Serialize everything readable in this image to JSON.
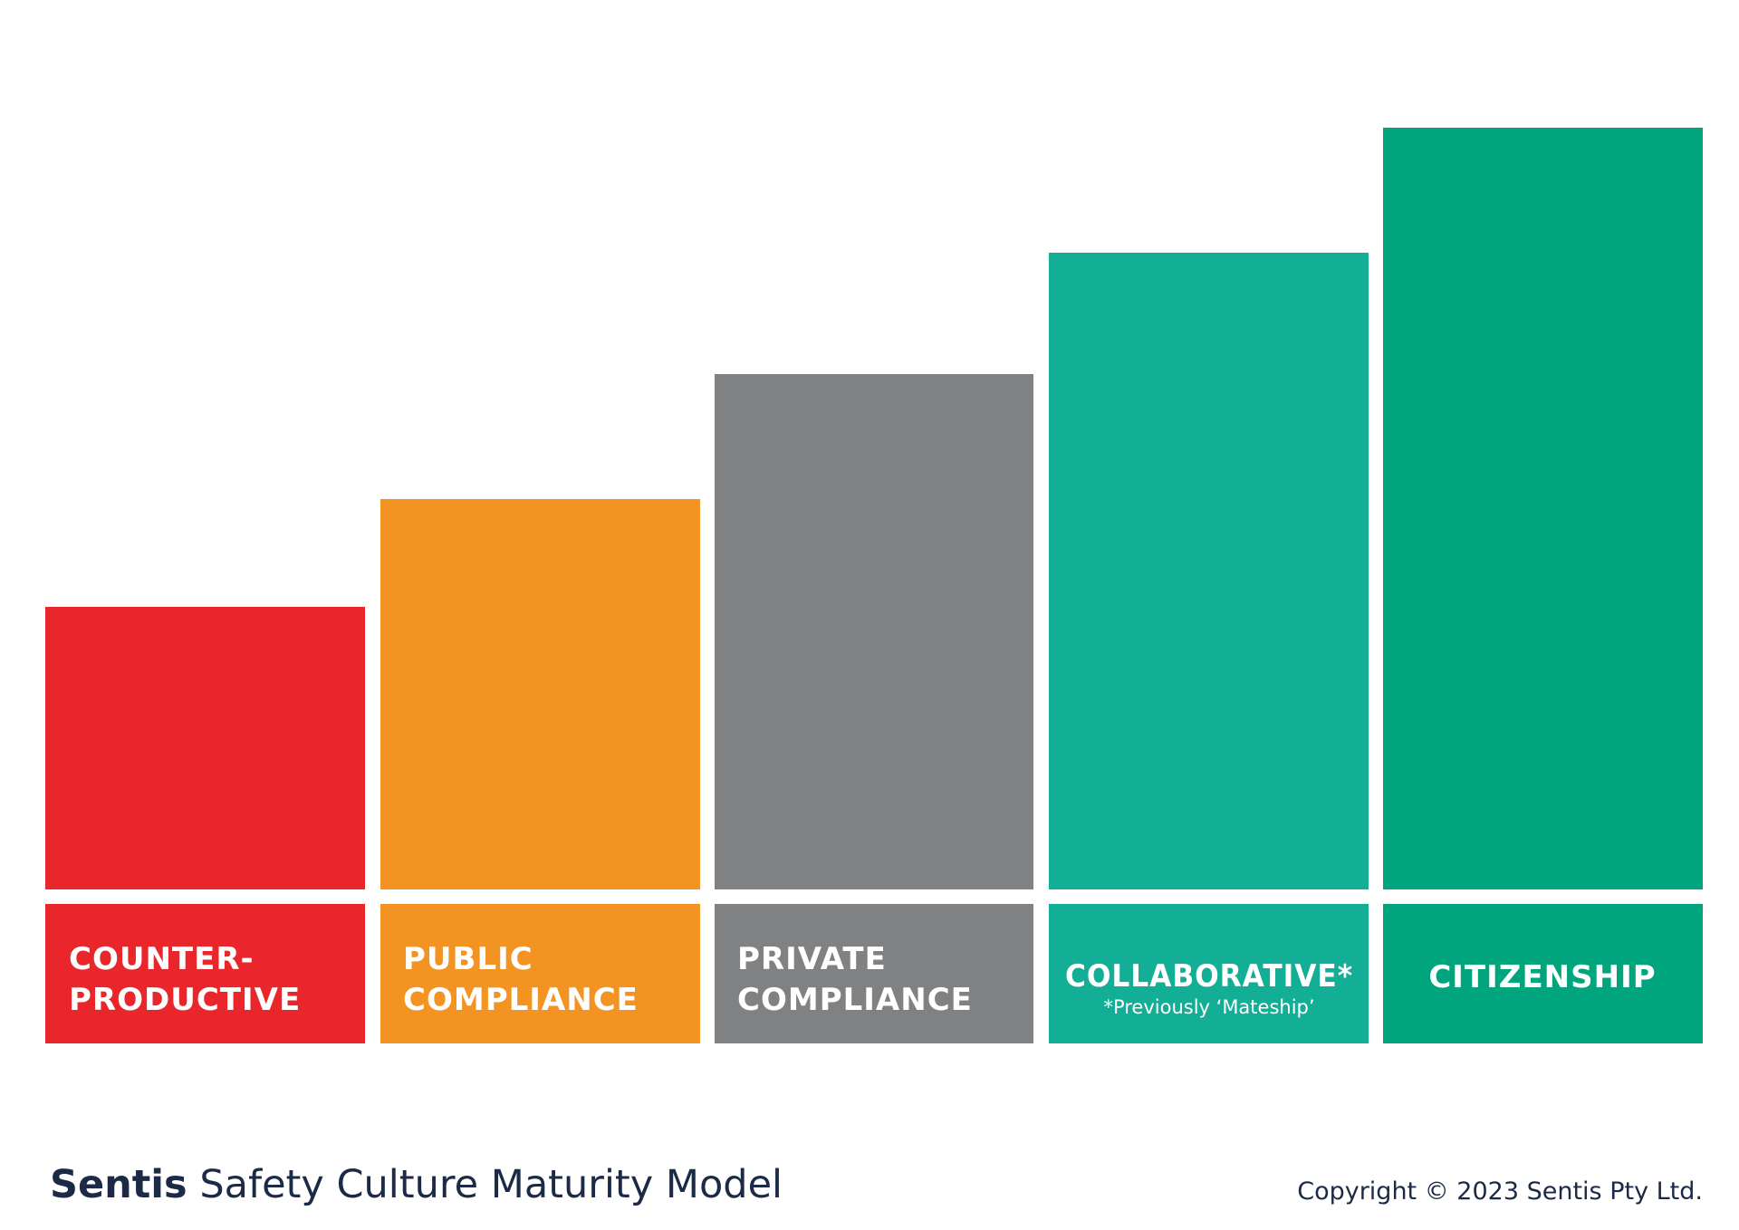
{
  "stages": [
    {
      "label_lines": [
        "COUNTER-",
        "PRODUCTIVE"
      ]
    },
    {
      "label_lines": [
        "PUBLIC",
        "COMPLIANCE"
      ]
    },
    {
      "label_lines": [
        "PRIVATE",
        "COMPLIANCE"
      ]
    },
    {
      "label_lines": [
        "COLLABORATIVE*"
      ],
      "note": "*Previously ‘Mateship’"
    },
    {
      "label_lines": [
        "CITIZENSHIP"
      ]
    }
  ],
  "footer": {
    "brand": "Sentis",
    "title": "Safety Culture Maturity Model",
    "copyright": "Copyright © 2023 Sentis Pty Ltd."
  }
}
